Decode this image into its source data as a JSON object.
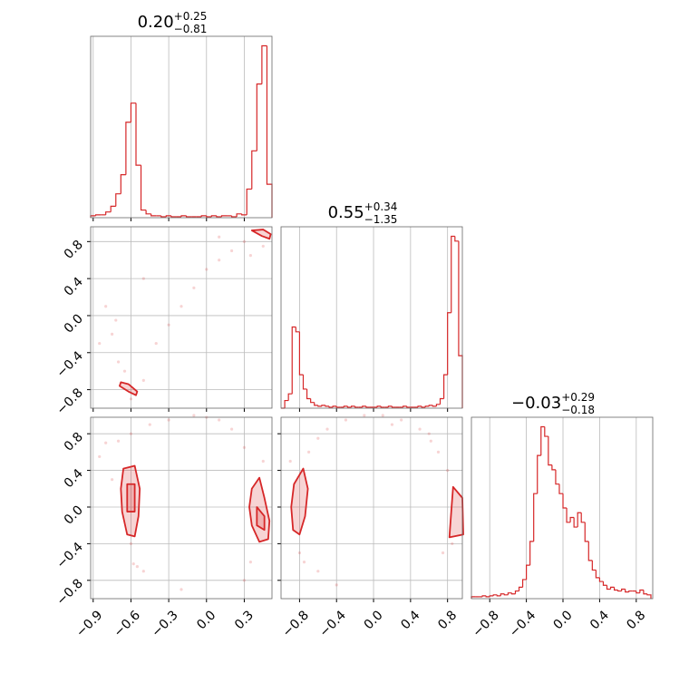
{
  "chart_data": {
    "type": "corner",
    "color": "#d62728",
    "grid": true,
    "params": [
      {
        "title": "0.20",
        "title_plus": "+0.25",
        "title_minus": "−0.81",
        "lim": [
          -0.92,
          0.52
        ],
        "ticks": [
          {
            "value": -0.9,
            "label": "−0.9"
          },
          {
            "value": -0.6,
            "label": "−0.6"
          },
          {
            "value": -0.3,
            "label": "−0.3"
          },
          {
            "value": 0.0,
            "label": "0.0"
          },
          0.3
        ],
        "hist": {
          "ylim": [
            0,
            190
          ],
          "bins": [
            -0.92,
            -0.88,
            -0.84,
            -0.8,
            -0.76,
            -0.72,
            -0.68,
            -0.64,
            -0.6,
            -0.56,
            -0.52,
            -0.48,
            -0.44,
            -0.4,
            -0.36,
            -0.32,
            -0.28,
            -0.24,
            -0.2,
            -0.16,
            -0.12,
            -0.08,
            -0.04,
            0.0,
            0.04,
            0.08,
            0.12,
            0.16,
            0.2,
            0.24,
            0.28,
            0.32,
            0.36,
            0.4,
            0.44,
            0.48,
            0.52
          ],
          "counts": [
            2,
            3,
            3,
            6,
            12,
            25,
            45,
            100,
            120,
            55,
            8,
            4,
            2,
            2,
            1,
            2,
            1,
            1,
            2,
            1,
            1,
            1,
            2,
            1,
            2,
            1,
            2,
            2,
            1,
            4,
            3,
            30,
            70,
            140,
            180,
            35
          ]
        }
      },
      {
        "title": "0.55",
        "title_plus": "+0.34",
        "title_minus": "−1.35",
        "lim": [
          -1.0,
          0.96
        ],
        "ticks": [
          {
            "value": -0.8,
            "label": "−0.8"
          },
          {
            "value": -0.4,
            "label": "−0.4"
          },
          {
            "value": 0.0,
            "label": "0.0"
          },
          0.4,
          0.8
        ],
        "hist": {
          "ylim": [
            0,
            190
          ],
          "bins": [
            -1.0,
            -0.96,
            -0.92,
            -0.88,
            -0.84,
            -0.8,
            -0.76,
            -0.72,
            -0.68,
            -0.64,
            -0.6,
            -0.56,
            -0.52,
            -0.48,
            -0.44,
            -0.4,
            -0.36,
            -0.32,
            -0.28,
            -0.24,
            -0.2,
            -0.16,
            -0.12,
            -0.08,
            -0.04,
            0.0,
            0.04,
            0.08,
            0.12,
            0.16,
            0.2,
            0.24,
            0.28,
            0.32,
            0.36,
            0.4,
            0.44,
            0.48,
            0.52,
            0.56,
            0.6,
            0.64,
            0.68,
            0.72,
            0.76,
            0.8,
            0.84,
            0.88,
            0.92,
            0.96
          ],
          "counts": [
            0,
            8,
            15,
            85,
            80,
            35,
            20,
            10,
            6,
            3,
            2,
            3,
            2,
            1,
            2,
            1,
            1,
            2,
            1,
            2,
            1,
            1,
            2,
            1,
            1,
            1,
            2,
            1,
            1,
            2,
            1,
            1,
            1,
            2,
            1,
            1,
            1,
            2,
            1,
            2,
            3,
            2,
            4,
            10,
            35,
            100,
            180,
            175,
            55
          ]
        }
      },
      {
        "title": "−0.03",
        "title_plus": "+0.29",
        "title_minus": "−0.18",
        "lim": [
          -1.0,
          0.98
        ],
        "ticks": [
          {
            "value": -0.8,
            "label": "−0.8"
          },
          {
            "value": -0.4,
            "label": "−0.4"
          },
          {
            "value": 0.0,
            "label": "0.0"
          },
          0.4,
          0.8
        ],
        "hist": {
          "ylim": [
            0,
            190
          ],
          "bins": [
            -1.0,
            -0.96,
            -0.92,
            -0.88,
            -0.84,
            -0.8,
            -0.76,
            -0.72,
            -0.68,
            -0.64,
            -0.6,
            -0.56,
            -0.52,
            -0.48,
            -0.44,
            -0.4,
            -0.36,
            -0.32,
            -0.28,
            -0.24,
            -0.2,
            -0.16,
            -0.12,
            -0.08,
            -0.04,
            0.0,
            0.04,
            0.08,
            0.12,
            0.16,
            0.2,
            0.24,
            0.28,
            0.32,
            0.36,
            0.4,
            0.44,
            0.48,
            0.52,
            0.56,
            0.6,
            0.64,
            0.68,
            0.72,
            0.76,
            0.8,
            0.84,
            0.88,
            0.92,
            0.96
          ],
          "counts": [
            2,
            2,
            2,
            3,
            2,
            3,
            4,
            3,
            5,
            4,
            6,
            5,
            8,
            12,
            20,
            35,
            60,
            110,
            150,
            180,
            170,
            140,
            135,
            120,
            110,
            95,
            80,
            85,
            75,
            90,
            80,
            60,
            40,
            30,
            22,
            18,
            14,
            10,
            12,
            9,
            8,
            10,
            7,
            8,
            8,
            6,
            9,
            5,
            4
          ]
        }
      }
    ],
    "pairs": [
      {
        "points": {
          "x": [
            -0.75,
            -0.7,
            -0.65,
            -0.6,
            -0.5,
            -0.4,
            -0.3,
            -0.2,
            -0.1,
            0.0,
            0.1,
            0.2,
            0.3,
            -0.8,
            -0.72,
            0.35,
            0.45,
            -0.85,
            -0.5,
            0.1
          ],
          "y": [
            -0.2,
            -0.5,
            -0.6,
            -0.9,
            -0.7,
            -0.3,
            -0.1,
            0.1,
            0.3,
            0.5,
            0.6,
            0.7,
            0.8,
            0.1,
            -0.05,
            0.65,
            0.75,
            -0.3,
            0.4,
            0.85
          ]
        },
        "contours": [
          {
            "x": [
              -0.68,
              -0.62,
              -0.55,
              -0.56,
              -0.62,
              -0.69
            ],
            "y": [
              -0.72,
              -0.74,
              -0.82,
              -0.86,
              -0.82,
              -0.76
            ]
          },
          {
            "x": [
              0.36,
              0.44,
              0.5,
              0.51,
              0.45
            ],
            "y": [
              0.92,
              0.86,
              0.83,
              0.88,
              0.93
            ]
          }
        ]
      },
      {
        "points": {
          "x": [
            -0.85,
            -0.8,
            -0.7,
            -0.6,
            -0.55,
            -0.45,
            -0.3,
            -0.1,
            0.1,
            0.2,
            0.3,
            0.35,
            0.45,
            -0.6,
            -0.5,
            0.3,
            -0.2,
            0.0,
            -0.58,
            -0.75
          ],
          "y": [
            0.55,
            0.7,
            0.72,
            0.8,
            -0.65,
            0.9,
            0.95,
            1.0,
            0.95,
            0.85,
            0.65,
            -0.6,
            0.5,
            -0.4,
            -0.7,
            -0.8,
            -0.9,
            0.98,
            -0.62,
            0.3
          ]
        },
        "contours": [
          {
            "x": [
              -0.66,
              -0.57,
              -0.53,
              -0.54,
              -0.57,
              -0.63,
              -0.67,
              -0.68
            ],
            "y": [
              0.42,
              0.45,
              0.2,
              -0.1,
              -0.32,
              -0.3,
              -0.05,
              0.2
            ]
          },
          {
            "x": [
              -0.63,
              -0.57,
              -0.57,
              -0.63
            ],
            "y": [
              0.25,
              0.25,
              -0.05,
              -0.05
            ]
          },
          {
            "x": [
              0.36,
              0.42,
              0.46,
              0.5,
              0.49,
              0.42,
              0.36,
              0.34
            ],
            "y": [
              0.2,
              0.32,
              0.1,
              -0.15,
              -0.35,
              -0.38,
              -0.2,
              0.0
            ]
          },
          {
            "x": [
              0.4,
              0.46,
              0.46,
              0.4
            ],
            "y": [
              0.0,
              -0.1,
              -0.25,
              -0.2
            ]
          }
        ]
      },
      {
        "points": {
          "x": [
            -0.9,
            -0.7,
            -0.6,
            -0.5,
            -0.3,
            -0.1,
            0.1,
            0.3,
            0.5,
            0.6,
            0.7,
            0.8,
            -0.8,
            -0.6,
            -0.4,
            0.75,
            0.85,
            0.2,
            -0.75,
            0.62
          ],
          "y": [
            0.5,
            0.6,
            0.75,
            0.85,
            0.95,
            1.0,
            1.0,
            0.95,
            0.85,
            0.8,
            0.6,
            0.4,
            -0.5,
            -0.7,
            -0.85,
            -0.5,
            -0.4,
            0.9,
            -0.6,
            0.72
          ]
        },
        "contours": [
          {
            "x": [
              -0.86,
              -0.76,
              -0.71,
              -0.74,
              -0.8,
              -0.87,
              -0.89
            ],
            "y": [
              0.25,
              0.42,
              0.2,
              -0.1,
              -0.3,
              -0.25,
              0.0
            ]
          },
          {
            "x": [
              0.86,
              0.96,
              0.97,
              0.82,
              0.84
            ],
            "y": [
              0.22,
              0.1,
              -0.3,
              -0.33,
              -0.05
            ]
          }
        ]
      }
    ]
  }
}
